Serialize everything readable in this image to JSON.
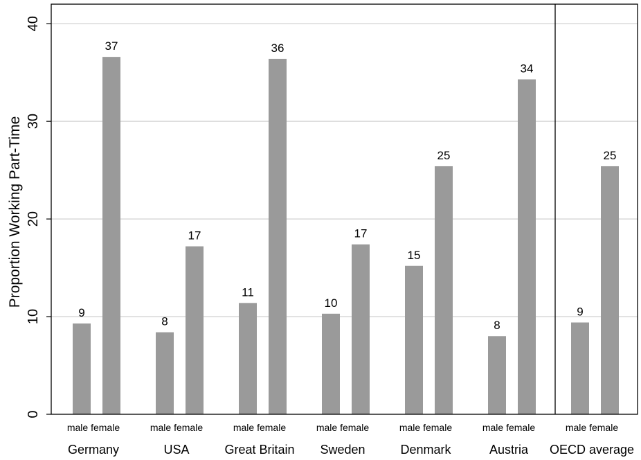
{
  "chart_data": {
    "type": "bar",
    "ylabel": "Proportion Working Part-Time",
    "ylim": [
      0,
      42
    ],
    "yticks": [
      0,
      10,
      20,
      30,
      40
    ],
    "grid": true,
    "bar_color": "#9a9a9a",
    "grid_color": "#d8d8d8",
    "sub_categories": [
      "male",
      "female"
    ],
    "groups": [
      {
        "name": "Germany",
        "values": [
          9.3,
          36.6
        ],
        "labels": [
          "9",
          "37"
        ]
      },
      {
        "name": "USA",
        "values": [
          8.4,
          17.2
        ],
        "labels": [
          "8",
          "17"
        ]
      },
      {
        "name": "Great Britain",
        "values": [
          11.4,
          36.4
        ],
        "labels": [
          "11",
          "36"
        ]
      },
      {
        "name": "Sweden",
        "values": [
          10.3,
          17.4
        ],
        "labels": [
          "10",
          "17"
        ]
      },
      {
        "name": "Denmark",
        "values": [
          15.2,
          25.4
        ],
        "labels": [
          "15",
          "25"
        ]
      },
      {
        "name": "Austria",
        "values": [
          8.0,
          34.3
        ],
        "labels": [
          "8",
          "34"
        ]
      },
      {
        "name": "OECD average",
        "values": [
          9.4,
          25.4
        ],
        "labels": [
          "9",
          "25"
        ]
      }
    ]
  }
}
